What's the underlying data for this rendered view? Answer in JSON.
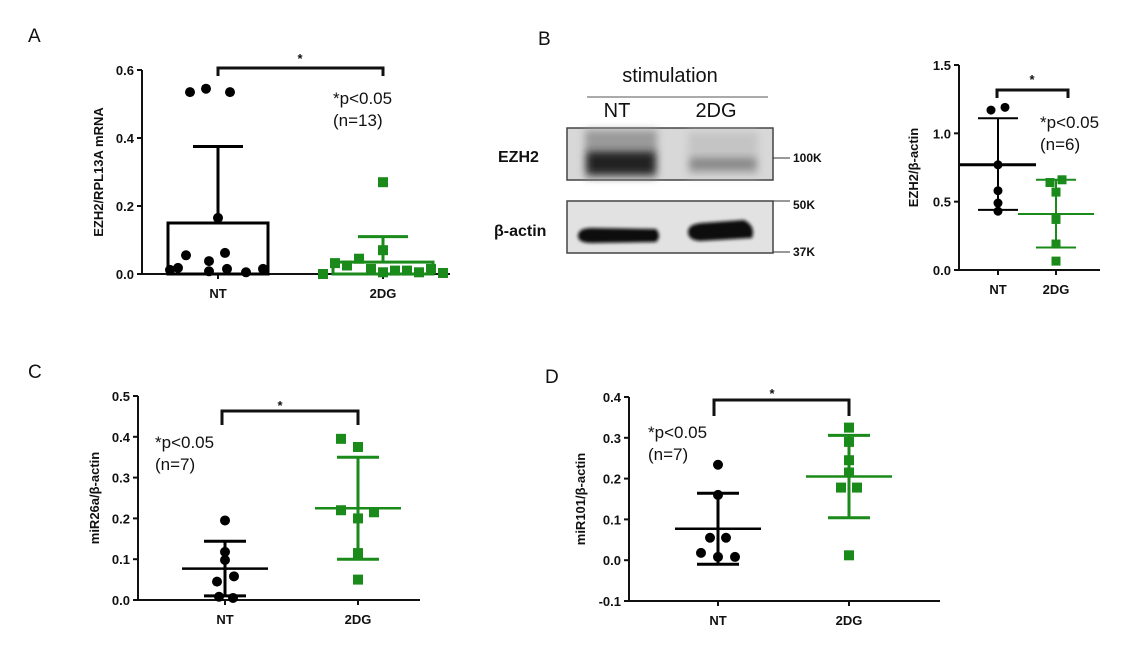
{
  "colors": {
    "nt": "#000000",
    "dg": "#1a8a1a"
  },
  "blot": {
    "label": "B",
    "header": "stimulation",
    "lanes": [
      "NT",
      "2DG"
    ],
    "rows": [
      "EZH2",
      "β-actin"
    ],
    "markers": [
      "100K",
      "50K",
      "37K"
    ]
  },
  "chart_data": [
    {
      "panel": "A",
      "type": "bar",
      "ylabel": "EZH2/RPL13A mRNA",
      "categories": [
        "NT",
        "2DG"
      ],
      "ylim": [
        0,
        0.6
      ],
      "yticks": [
        "0.0",
        "0.2",
        "0.4",
        "0.6"
      ],
      "ytick_values": [
        0,
        0.2,
        0.4,
        0.6
      ],
      "annotation": [
        "*p<0.05",
        "(n=13)"
      ],
      "significance": "*",
      "series": [
        {
          "name": "NT",
          "mean": 0.15,
          "sd_upper": 0.375,
          "points": [
            0.535,
            0.545,
            0.535,
            0.165,
            0.055,
            0.038,
            0.062,
            0.018,
            0.008,
            0.015,
            0.005,
            0.015,
            0.012
          ]
        },
        {
          "name": "2DG",
          "mean": 0.035,
          "sd_upper": 0.11,
          "points": [
            0.27,
            0.07,
            0.045,
            0.025,
            0.005,
            0.015,
            0.01,
            0.0,
            0.01,
            0.005,
            0.032,
            0.015,
            0.003
          ]
        }
      ]
    },
    {
      "panel": "",
      "type": "scatter",
      "ylabel": "EZH2/β-actin",
      "categories": [
        "NT",
        "2DG"
      ],
      "ylim": [
        0,
        1.5
      ],
      "yticks": [
        "0.0",
        "0.5",
        "1.0",
        "1.5"
      ],
      "ytick_values": [
        0,
        0.5,
        1.0,
        1.5
      ],
      "annotation": [
        "*p<0.05",
        "(n=6)"
      ],
      "significance": "*",
      "series": [
        {
          "name": "NT",
          "mean": 0.77,
          "sd_lower": 0.44,
          "sd_upper": 1.11,
          "points": [
            1.17,
            1.19,
            0.77,
            0.58,
            0.49,
            0.43
          ]
        },
        {
          "name": "2DG",
          "mean": 0.41,
          "sd_lower": 0.165,
          "sd_upper": 0.66,
          "points": [
            0.64,
            0.66,
            0.57,
            0.37,
            0.19,
            0.065
          ]
        }
      ]
    },
    {
      "panel": "C",
      "type": "scatter",
      "ylabel": "miR26a/β-actin",
      "categories": [
        "NT",
        "2DG"
      ],
      "ylim": [
        0,
        0.5
      ],
      "yticks": [
        "0.0",
        "0.1",
        "0.2",
        "0.3",
        "0.4",
        "0.5"
      ],
      "ytick_values": [
        0,
        0.1,
        0.2,
        0.3,
        0.4,
        0.5
      ],
      "annotation": [
        "*p<0.05",
        "(n=7)"
      ],
      "significance": "*",
      "series": [
        {
          "name": "NT",
          "mean": 0.077,
          "sd_lower": 0.01,
          "sd_upper": 0.144,
          "points": [
            0.195,
            0.118,
            0.098,
            0.058,
            0.045,
            0.008,
            0.005
          ]
        },
        {
          "name": "2DG",
          "mean": 0.225,
          "sd_lower": 0.1,
          "sd_upper": 0.35,
          "points": [
            0.395,
            0.375,
            0.22,
            0.2,
            0.215,
            0.115,
            0.05
          ]
        }
      ]
    },
    {
      "panel": "D",
      "type": "scatter",
      "ylabel": "miR101/β-actin",
      "categories": [
        "NT",
        "2DG"
      ],
      "ylim": [
        -0.1,
        0.4
      ],
      "yticks": [
        "-0.1",
        "0.0",
        "0.1",
        "0.2",
        "0.3",
        "0.4"
      ],
      "ytick_values": [
        -0.1,
        0,
        0.1,
        0.2,
        0.3,
        0.4
      ],
      "annotation": [
        "*p<0.05",
        "(n=7)"
      ],
      "significance": "*",
      "series": [
        {
          "name": "NT",
          "mean": 0.077,
          "sd_lower": -0.01,
          "sd_upper": 0.164,
          "points": [
            0.234,
            0.16,
            0.055,
            0.055,
            0.018,
            0.008,
            0.008
          ]
        },
        {
          "name": "2DG",
          "mean": 0.205,
          "sd_lower": 0.104,
          "sd_upper": 0.306,
          "points": [
            0.325,
            0.29,
            0.245,
            0.215,
            0.178,
            0.178,
            0.012
          ]
        }
      ]
    }
  ]
}
